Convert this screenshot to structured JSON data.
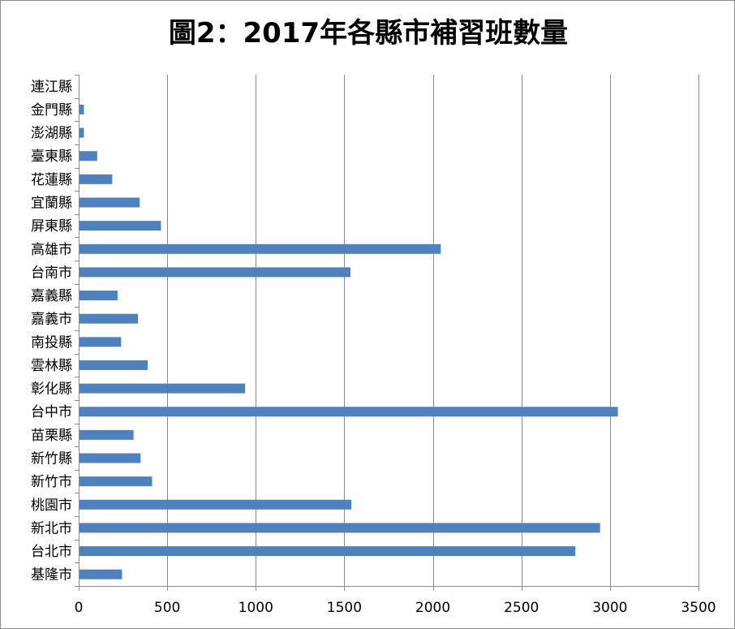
{
  "chart_data": {
    "type": "bar",
    "orientation": "horizontal",
    "title": "圖2：2017年各縣市補習班數量",
    "xlabel": "",
    "ylabel": "",
    "xlim": [
      0,
      3500
    ],
    "x_ticks": [
      "0",
      "500",
      "1000",
      "1500",
      "2000",
      "2500",
      "3000",
      "3500"
    ],
    "x_tick_values": [
      0,
      500,
      1000,
      1500,
      2000,
      2500,
      3000,
      3500
    ],
    "grid": "vertical",
    "legend": "none",
    "bar_color": "#4F81BD",
    "categories": [
      "連江縣",
      "金門縣",
      "澎湖縣",
      "臺東縣",
      "花蓮縣",
      "宜蘭縣",
      "屏東縣",
      "高雄市",
      "台南市",
      "嘉義縣",
      "嘉義市",
      "南投縣",
      "雲林縣",
      "彰化縣",
      "台中市",
      "苗栗縣",
      "新竹縣",
      "新竹市",
      "桃園市",
      "新北市",
      "台北市",
      "基隆市"
    ],
    "values": [
      0,
      25,
      25,
      100,
      185,
      340,
      460,
      2040,
      1530,
      215,
      330,
      235,
      385,
      935,
      3040,
      305,
      345,
      410,
      1535,
      2940,
      2800,
      240
    ]
  }
}
